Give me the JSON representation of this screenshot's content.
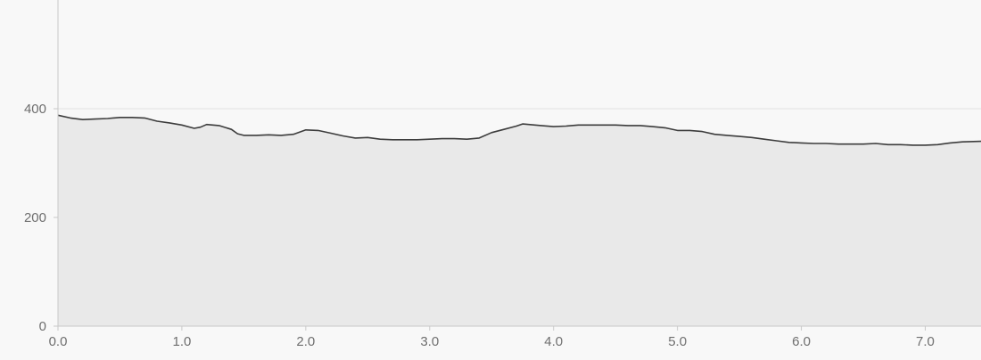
{
  "chart_data": {
    "type": "area",
    "title": "",
    "xlabel": "",
    "ylabel": "",
    "xlim": [
      0.0,
      7.45
    ],
    "ylim": [
      0,
      600
    ],
    "grid": true,
    "x_ticks": [
      0.0,
      1.0,
      2.0,
      3.0,
      4.0,
      5.0,
      6.0,
      7.0
    ],
    "x_tick_labels": [
      "0.0",
      "1.0",
      "2.0",
      "3.0",
      "4.0",
      "5.0",
      "6.0",
      "7.0"
    ],
    "y_ticks": [
      0,
      200,
      400
    ],
    "y_tick_labels": [
      "0",
      "200",
      "400"
    ],
    "series": [
      {
        "x": [
          0.0,
          0.1,
          0.2,
          0.3,
          0.4,
          0.5,
          0.6,
          0.7,
          0.8,
          0.9,
          1.0,
          1.1,
          1.15,
          1.2,
          1.3,
          1.4,
          1.45,
          1.5,
          1.6,
          1.7,
          1.8,
          1.9,
          2.0,
          2.1,
          2.2,
          2.3,
          2.4,
          2.5,
          2.6,
          2.7,
          2.8,
          2.9,
          3.0,
          3.1,
          3.2,
          3.3,
          3.4,
          3.5,
          3.6,
          3.7,
          3.75,
          3.8,
          3.9,
          4.0,
          4.1,
          4.2,
          4.3,
          4.4,
          4.5,
          4.6,
          4.7,
          4.8,
          4.9,
          5.0,
          5.1,
          5.2,
          5.3,
          5.4,
          5.5,
          5.6,
          5.7,
          5.8,
          5.9,
          6.0,
          6.1,
          6.2,
          6.3,
          6.4,
          6.5,
          6.6,
          6.7,
          6.8,
          6.9,
          7.0,
          7.1,
          7.2,
          7.3,
          7.45
        ],
        "values": [
          388,
          383,
          380,
          381,
          382,
          384,
          384,
          383,
          377,
          374,
          370,
          364,
          366,
          371,
          369,
          362,
          354,
          351,
          351,
          352,
          351,
          353,
          361,
          360,
          355,
          350,
          346,
          347,
          344,
          343,
          343,
          343,
          344,
          345,
          345,
          344,
          346,
          356,
          362,
          368,
          372,
          371,
          369,
          367,
          368,
          370,
          370,
          370,
          370,
          369,
          369,
          367,
          365,
          360,
          360,
          358,
          353,
          351,
          349,
          347,
          344,
          341,
          338,
          337,
          336,
          336,
          335,
          335,
          335,
          336,
          334,
          334,
          333,
          333,
          334,
          337,
          339,
          340
        ]
      }
    ],
    "colors": {
      "background": "#f8f8f8",
      "area_fill": "#e9e9e9",
      "line": "#3c3c3c",
      "grid": "#e2e2e2",
      "axis": "#c8c8c8",
      "tick_label": "#6e6e6e"
    }
  }
}
